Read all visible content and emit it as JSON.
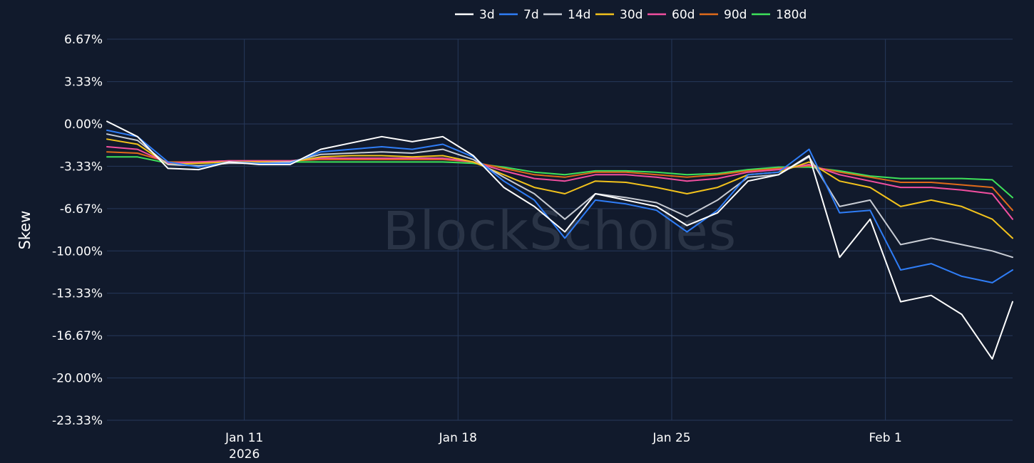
{
  "chart_data": {
    "type": "line",
    "ylabel": "Skew",
    "watermark": "BlockScholes",
    "legend_position": "top-center",
    "grid": true,
    "x_ticks": [
      {
        "label": "Jan 11",
        "sublabel": "2026",
        "date": "2026-01-11"
      },
      {
        "label": "Jan 18",
        "sublabel": "",
        "date": "2026-01-18"
      },
      {
        "label": "Jan 25",
        "sublabel": "",
        "date": "2026-01-25"
      },
      {
        "label": "Feb 1",
        "sublabel": "",
        "date": "2026-02-01"
      }
    ],
    "xlim": [
      "2026-01-06T12:00",
      "2026-02-05T04:00"
    ],
    "y_ticks": [
      {
        "value": 6.67,
        "label": "6.67%"
      },
      {
        "value": 3.33,
        "label": "3.33%"
      },
      {
        "value": 0.0,
        "label": "0.00%"
      },
      {
        "value": -3.33,
        "label": "-3.33%"
      },
      {
        "value": -6.67,
        "label": "-6.67%"
      },
      {
        "value": -10.0,
        "label": "-10.00%"
      },
      {
        "value": -13.33,
        "label": "-13.33%"
      },
      {
        "value": -16.67,
        "label": "-16.67%"
      },
      {
        "value": -20.0,
        "label": "-20.00%"
      },
      {
        "value": -23.33,
        "label": "-23.33%"
      }
    ],
    "ylim": [
      -23.33,
      6.67
    ],
    "x": [
      "2026-01-06T12:00",
      "2026-01-07T12:00",
      "2026-01-08T12:00",
      "2026-01-09T12:00",
      "2026-01-10T12:00",
      "2026-01-11T12:00",
      "2026-01-12T12:00",
      "2026-01-13T12:00",
      "2026-01-14T12:00",
      "2026-01-15T12:00",
      "2026-01-16T12:00",
      "2026-01-17T12:00",
      "2026-01-18T12:00",
      "2026-01-19T12:00",
      "2026-01-20T12:00",
      "2026-01-21T12:00",
      "2026-01-22T12:00",
      "2026-01-23T12:00",
      "2026-01-24T12:00",
      "2026-01-25T12:00",
      "2026-01-26T12:00",
      "2026-01-27T12:00",
      "2026-01-28T12:00",
      "2026-01-29T12:00",
      "2026-01-30T12:00",
      "2026-01-31T12:00",
      "2026-02-01T12:00",
      "2026-02-02T12:00",
      "2026-02-03T12:00",
      "2026-02-04T12:00",
      "2026-02-05T04:00"
    ],
    "series": [
      {
        "name": "3d",
        "color": "#ffffff",
        "values": [
          0.2,
          -1.0,
          -3.5,
          -3.6,
          -3.0,
          -3.2,
          -3.2,
          -2.0,
          -1.5,
          -1.0,
          -1.4,
          -1.0,
          -2.5,
          -5.0,
          -6.5,
          -8.5,
          -5.5,
          -6.0,
          -6.5,
          -8.0,
          -7.0,
          -4.5,
          -4.0,
          -2.5,
          -10.5,
          -7.5,
          -14.0,
          -13.5,
          -15.0,
          -18.5,
          -14.0
        ]
      },
      {
        "name": "7d",
        "color": "#2f7df6",
        "values": [
          -0.5,
          -1.0,
          -3.0,
          -3.4,
          -3.0,
          -3.1,
          -3.1,
          -2.2,
          -2.0,
          -1.8,
          -2.0,
          -1.6,
          -2.6,
          -4.5,
          -6.0,
          -9.0,
          -6.0,
          -6.3,
          -6.8,
          -8.5,
          -6.8,
          -4.0,
          -3.8,
          -2.0,
          -7.0,
          -6.8,
          -11.5,
          -11.0,
          -12.0,
          -12.5,
          -11.5
        ]
      },
      {
        "name": "14d",
        "color": "#c8ccd4",
        "values": [
          -0.8,
          -1.3,
          -3.2,
          -3.3,
          -3.1,
          -3.1,
          -3.0,
          -2.4,
          -2.3,
          -2.2,
          -2.3,
          -2.0,
          -2.8,
          -4.2,
          -5.5,
          -7.5,
          -5.5,
          -5.8,
          -6.2,
          -7.3,
          -6.0,
          -4.2,
          -4.0,
          -2.6,
          -6.5,
          -6.0,
          -9.5,
          -9.0,
          -9.5,
          -10.0,
          -10.5
        ]
      },
      {
        "name": "30d",
        "color": "#f2c21c",
        "values": [
          -1.2,
          -1.6,
          -3.2,
          -3.1,
          -3.0,
          -3.0,
          -3.0,
          -2.6,
          -2.5,
          -2.5,
          -2.6,
          -2.5,
          -3.0,
          -4.0,
          -5.0,
          -5.5,
          -4.5,
          -4.6,
          -5.0,
          -5.5,
          -5.0,
          -4.0,
          -3.8,
          -3.0,
          -4.5,
          -5.0,
          -6.5,
          -6.0,
          -6.5,
          -7.5,
          -9.0
        ]
      },
      {
        "name": "60d",
        "color": "#f24fa0",
        "values": [
          -1.8,
          -2.0,
          -3.1,
          -3.0,
          -2.9,
          -2.9,
          -2.9,
          -2.7,
          -2.7,
          -2.7,
          -2.7,
          -2.7,
          -3.0,
          -3.7,
          -4.3,
          -4.5,
          -4.0,
          -4.0,
          -4.2,
          -4.5,
          -4.3,
          -3.8,
          -3.6,
          -3.2,
          -4.0,
          -4.5,
          -5.0,
          -5.0,
          -5.2,
          -5.5,
          -7.5
        ]
      },
      {
        "name": "90d",
        "color": "#e06a1a",
        "values": [
          -2.2,
          -2.3,
          -3.0,
          -3.0,
          -2.9,
          -2.9,
          -2.9,
          -2.8,
          -2.8,
          -2.8,
          -2.8,
          -2.8,
          -3.0,
          -3.5,
          -4.0,
          -4.2,
          -3.8,
          -3.8,
          -4.0,
          -4.2,
          -4.0,
          -3.7,
          -3.5,
          -3.3,
          -3.8,
          -4.2,
          -4.6,
          -4.6,
          -4.8,
          -5.0,
          -6.8
        ]
      },
      {
        "name": "180d",
        "color": "#3ee25a",
        "values": [
          -2.6,
          -2.6,
          -3.1,
          -3.1,
          -3.0,
          -3.0,
          -3.0,
          -3.0,
          -3.0,
          -3.0,
          -3.0,
          -3.0,
          -3.1,
          -3.4,
          -3.8,
          -4.0,
          -3.7,
          -3.7,
          -3.8,
          -4.0,
          -3.9,
          -3.6,
          -3.4,
          -3.4,
          -3.7,
          -4.1,
          -4.3,
          -4.3,
          -4.3,
          -4.4,
          -5.8
        ]
      }
    ]
  }
}
